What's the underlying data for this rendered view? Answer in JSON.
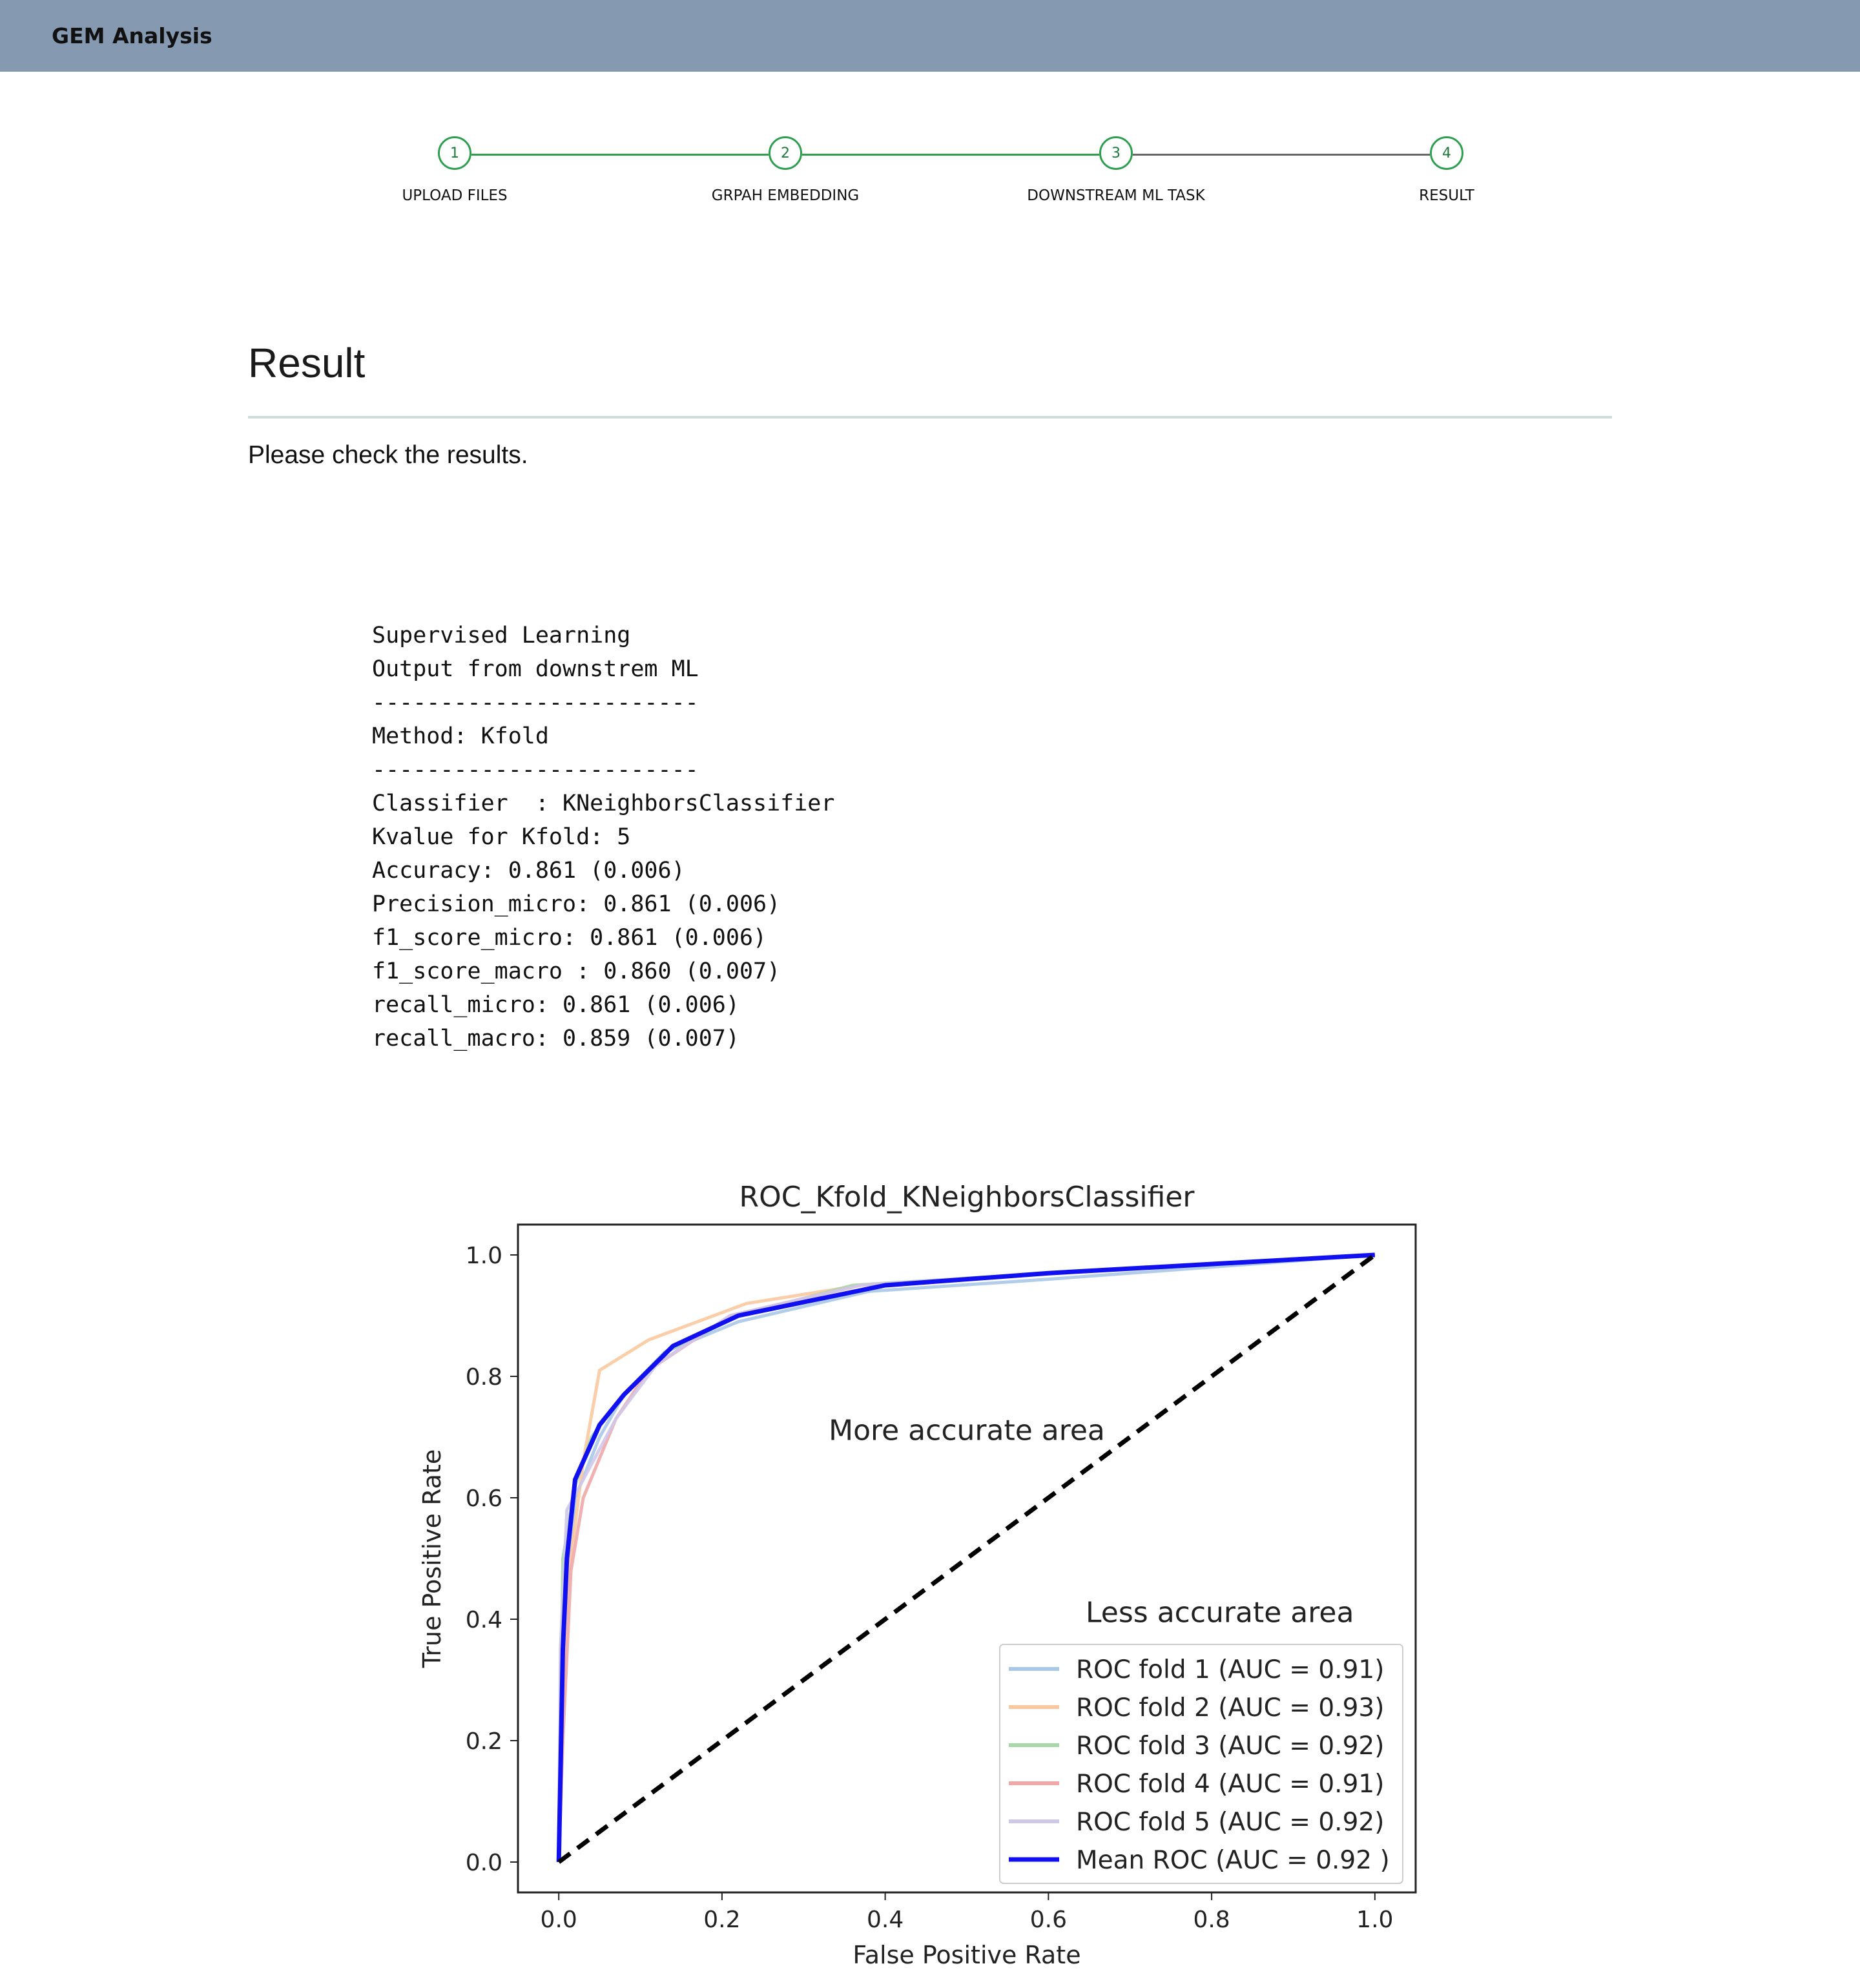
{
  "app": {
    "title": "GEM Analysis"
  },
  "stepper": {
    "steps": [
      {
        "number": "1",
        "label": "UPLOAD FILES",
        "state": "done"
      },
      {
        "number": "2",
        "label": "GRPAH EMBEDDING",
        "state": "done"
      },
      {
        "number": "3",
        "label": "DOWNSTREAM ML TASK",
        "state": "done"
      },
      {
        "number": "4",
        "label": "RESULT",
        "state": "active"
      }
    ],
    "colors": {
      "done": "#2e9f4f",
      "pending": "#666666"
    }
  },
  "page": {
    "title": "Result",
    "subtitle": "Please check the results."
  },
  "output": {
    "lines": [
      "Supervised Learning",
      "Output from downstrem ML",
      "------------------------",
      "Method: Kfold",
      "------------------------",
      "Classifier  : KNeighborsClassifier",
      "Kvalue for Kfold: 5",
      "Accuracy: 0.861 (0.006)",
      "Precision_micro: 0.861 (0.006)",
      "f1_score_micro: 0.861 (0.006)",
      "f1_score_macro : 0.860 (0.007)",
      "recall_micro: 0.861 (0.006)",
      "recall_macro: 0.859 (0.007)"
    ]
  },
  "chart_data": {
    "type": "line",
    "title": "ROC_Kfold_KNeighborsClassifier",
    "xlabel": "False Positive Rate",
    "ylabel": "True Positive Rate",
    "xlim": [
      -0.05,
      1.05
    ],
    "ylim": [
      -0.05,
      1.05
    ],
    "xticks": [
      "0.0",
      "0.2",
      "0.4",
      "0.6",
      "0.8",
      "1.0"
    ],
    "yticks": [
      "0.0",
      "0.2",
      "0.4",
      "0.6",
      "0.8",
      "1.0"
    ],
    "legend_position": "bottom-right",
    "annotations": [
      {
        "text": "More accurate area",
        "x": 0.5,
        "y": 0.71
      },
      {
        "text": "Less accurate area",
        "x": 0.81,
        "y": 0.41
      }
    ],
    "series": [
      {
        "name": "ROC fold 1 (AUC = 0.91)",
        "color": "#aac8e8",
        "x": [
          0,
          0.005,
          0.02,
          0.05,
          0.08,
          0.13,
          0.22,
          0.38,
          0.6,
          1.0
        ],
        "y": [
          0,
          0.35,
          0.6,
          0.7,
          0.77,
          0.84,
          0.89,
          0.94,
          0.96,
          1.0
        ]
      },
      {
        "name": "ROC fold 2 (AUC = 0.93)",
        "color": "#f8c9a0",
        "x": [
          0,
          0.01,
          0.03,
          0.05,
          0.11,
          0.23,
          0.37,
          0.6,
          1.0
        ],
        "y": [
          0,
          0.45,
          0.66,
          0.81,
          0.86,
          0.92,
          0.95,
          0.97,
          1.0
        ]
      },
      {
        "name": "ROC fold 3 (AUC = 0.92)",
        "color": "#a8d8a8",
        "x": [
          0,
          0.005,
          0.02,
          0.04,
          0.08,
          0.13,
          0.22,
          0.36,
          0.6,
          1.0
        ],
        "y": [
          0,
          0.5,
          0.62,
          0.7,
          0.77,
          0.84,
          0.9,
          0.95,
          0.97,
          1.0
        ]
      },
      {
        "name": "ROC fold 4 (AUC = 0.91)",
        "color": "#f0a8a8",
        "x": [
          0,
          0.005,
          0.015,
          0.03,
          0.07,
          0.11,
          0.21,
          0.37,
          0.6,
          1.0
        ],
        "y": [
          0,
          0.2,
          0.48,
          0.6,
          0.73,
          0.81,
          0.9,
          0.95,
          0.97,
          1.0
        ]
      },
      {
        "name": "ROC fold 5 (AUC = 0.92)",
        "color": "#cfc8ea",
        "x": [
          0,
          0.002,
          0.01,
          0.03,
          0.07,
          0.12,
          0.21,
          0.37,
          0.6,
          1.0
        ],
        "y": [
          0,
          0.35,
          0.58,
          0.63,
          0.73,
          0.82,
          0.9,
          0.95,
          0.97,
          1.0
        ]
      },
      {
        "name": "Mean ROC (AUC = 0.92 )",
        "color": "#1010f0",
        "x": [
          0,
          0.005,
          0.01,
          0.02,
          0.05,
          0.08,
          0.14,
          0.22,
          0.4,
          0.6,
          1.0
        ],
        "y": [
          0,
          0.35,
          0.5,
          0.63,
          0.72,
          0.77,
          0.85,
          0.9,
          0.95,
          0.97,
          1.0
        ]
      }
    ],
    "diagonal": {
      "x": [
        0,
        1
      ],
      "y": [
        0,
        1
      ],
      "style": "dashed",
      "color": "#000000"
    }
  }
}
